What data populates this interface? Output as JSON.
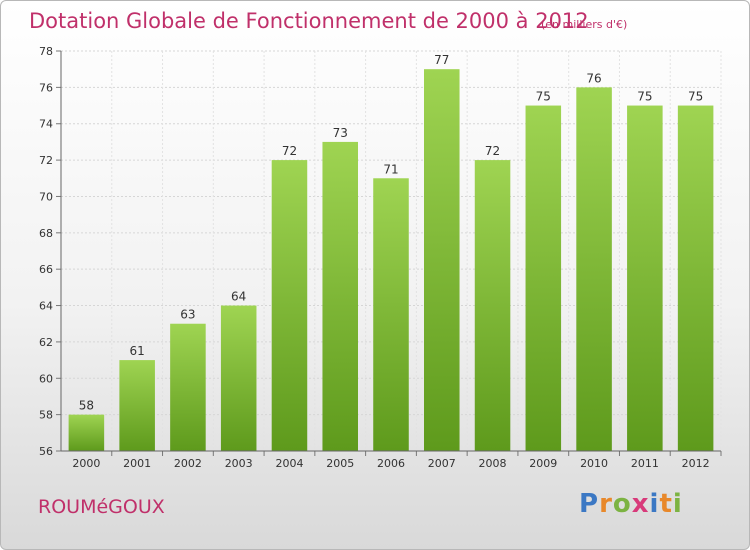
{
  "chart_data": {
    "type": "bar",
    "title": "Dotation Globale de Fonctionnement de 2000 à 2012",
    "subtitle": "(en milliers d'€)",
    "categories": [
      "2000",
      "2001",
      "2002",
      "2003",
      "2004",
      "2005",
      "2006",
      "2007",
      "2008",
      "2009",
      "2010",
      "2011",
      "2012"
    ],
    "values": [
      58,
      61,
      63,
      64,
      72,
      73,
      71,
      77,
      72,
      75,
      76,
      75,
      75
    ],
    "ylim": [
      56,
      78
    ],
    "yticks": [
      56,
      58,
      60,
      62,
      64,
      66,
      68,
      70,
      72,
      74,
      76,
      78
    ],
    "grid": true,
    "bar_color": "#8cc63f",
    "bar_color_dark": "#5e9a1c"
  },
  "commune": "ROUMéGOUX",
  "brand": {
    "letters": [
      "P",
      "r",
      "o",
      "x",
      "i",
      "t",
      "i"
    ],
    "name": "Proxiti"
  }
}
